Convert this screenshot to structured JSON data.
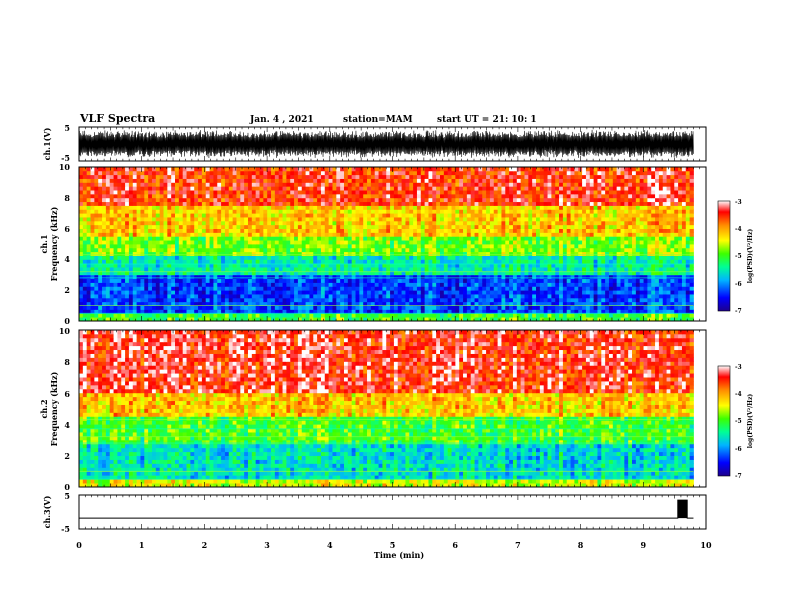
{
  "header": {
    "title": "VLF Spectra",
    "date": "Jan. 4 , 2021",
    "station": "station=MAM",
    "start": "start UT =  21: 10: 1"
  },
  "chart_data": [
    {
      "type": "line",
      "panel": "ch1-waveform",
      "ylabel": "ch.1(V)",
      "ylim": [
        -5,
        5
      ],
      "yticks": [
        "5",
        "-5"
      ],
      "xlim": [
        0,
        10
      ],
      "description_values": "dense oscillating waveform between about -4 and 4 V over 0 to 9.8 min"
    },
    {
      "type": "heatmap",
      "panel": "ch1-spectrogram",
      "ylabel_line1": "ch.1",
      "ylabel_line2": "Frequency (kHz)",
      "ylim": [
        0,
        10
      ],
      "yticks": [
        "10",
        "8",
        "6",
        "4",
        "2",
        "0"
      ],
      "xlim": [
        0,
        10
      ],
      "colorbar": {
        "label": "log(PSD)(V²/Hz)",
        "range": [
          -7,
          -3
        ],
        "ticks": [
          "-3",
          "-4",
          "-5",
          "-6",
          "-7"
        ]
      },
      "bands": [
        {
          "f_low": 0,
          "f_high": 0.6,
          "level": -5
        },
        {
          "f_low": 0.6,
          "f_high": 3.0,
          "level": -6.3
        },
        {
          "f_low": 3.0,
          "f_high": 4.2,
          "level": -5.5
        },
        {
          "f_low": 4.2,
          "f_high": 5.5,
          "level": -4.8
        },
        {
          "f_low": 5.5,
          "f_high": 7.5,
          "level": -4.2
        },
        {
          "f_low": 7.5,
          "f_high": 10,
          "level": -3.5
        }
      ]
    },
    {
      "type": "heatmap",
      "panel": "ch2-spectrogram",
      "ylabel_line1": "ch.2",
      "ylabel_line2": "Frequency (kHz)",
      "ylim": [
        0,
        10
      ],
      "yticks": [
        "10",
        "8",
        "6",
        "4",
        "2",
        "0"
      ],
      "xlim": [
        0,
        10
      ],
      "colorbar": {
        "label": "log(PSD)(V²/Hz)",
        "range": [
          -7,
          -3
        ],
        "ticks": [
          "-3",
          "-4",
          "-5",
          "-6",
          "-7"
        ]
      },
      "bands": [
        {
          "f_low": 0,
          "f_high": 0.5,
          "level": -4.5
        },
        {
          "f_low": 0.5,
          "f_high": 2.8,
          "level": -5.6
        },
        {
          "f_low": 2.8,
          "f_high": 4.5,
          "level": -5.0
        },
        {
          "f_low": 4.5,
          "f_high": 6.0,
          "level": -4.2
        },
        {
          "f_low": 6.0,
          "f_high": 10,
          "level": -3.4
        }
      ]
    },
    {
      "type": "line",
      "panel": "ch3-waveform",
      "ylabel": "ch.3(V)",
      "ylim": [
        -5,
        5
      ],
      "yticks": [
        "5",
        "-5"
      ],
      "xlim": [
        0,
        10
      ],
      "x": [
        0,
        9.55,
        9.55,
        9.7,
        9.7,
        9.8
      ],
      "y": [
        -1.8,
        -1.8,
        3.5,
        3.5,
        -1.8,
        -1.8
      ]
    }
  ],
  "x_axis": {
    "label": "Time (min)",
    "ticks": [
      "0",
      "1",
      "2",
      "3",
      "4",
      "5",
      "6",
      "7",
      "8",
      "9",
      "10"
    ]
  },
  "colors": {
    "colormap": [
      "#1e008c",
      "#0000ff",
      "#00b4ff",
      "#00ff96",
      "#3cff00",
      "#ffff00",
      "#ff8c00",
      "#ff0000",
      "#ffffff"
    ]
  }
}
